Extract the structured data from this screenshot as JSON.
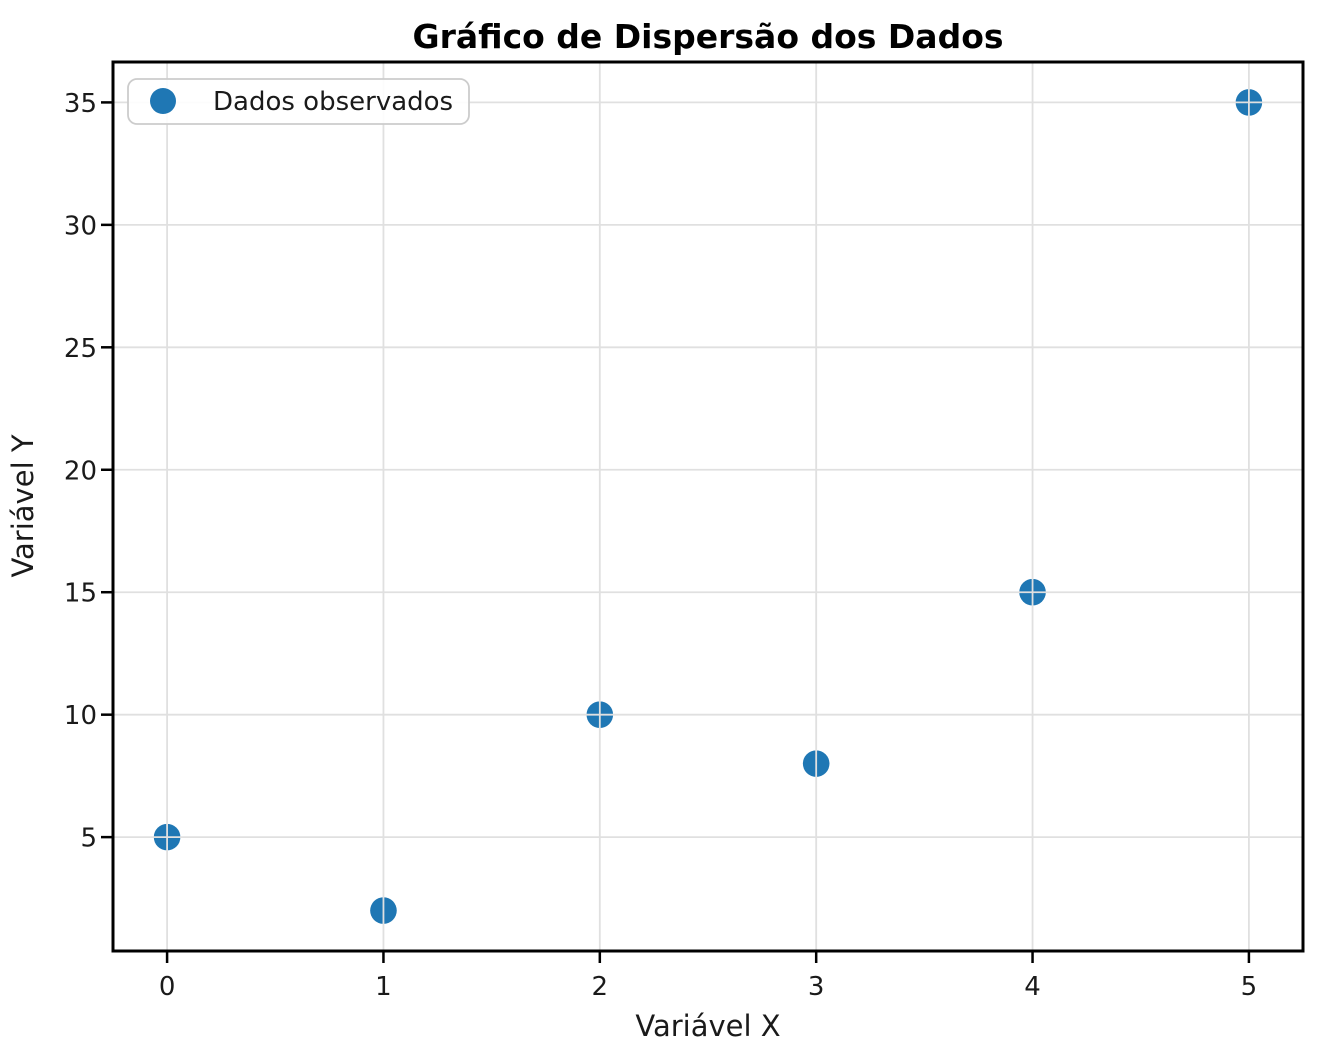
{
  "chart_data": {
    "type": "scatter",
    "title": "Gráfico de Dispersão dos Dados",
    "xlabel": "Variável X",
    "ylabel": "Variável Y",
    "x": [
      0,
      1,
      2,
      3,
      4,
      5
    ],
    "y": [
      5,
      2,
      10,
      8,
      15,
      35
    ],
    "xticks": [
      "0",
      "1",
      "2",
      "3",
      "4",
      "5"
    ],
    "xtick_values": [
      0,
      1,
      2,
      3,
      4,
      5
    ],
    "yticks": [
      "5",
      "10",
      "15",
      "20",
      "25",
      "30",
      "35"
    ],
    "ytick_values": [
      5,
      10,
      15,
      20,
      25,
      30,
      35
    ],
    "xlim": [
      -0.25,
      5.25
    ],
    "ylim": [
      0.35,
      36.65
    ],
    "grid": true,
    "legend": {
      "position": "upper left",
      "entries": [
        {
          "label": "Dados observados",
          "marker": "circle-marker-icon",
          "marker_color": "#1f77b4"
        }
      ]
    },
    "colors": {
      "marker": "#1f77b4",
      "grid": "#e0e0e0",
      "spine": "#000000",
      "legend_border": "#cccccc",
      "background": "#ffffff"
    }
  }
}
